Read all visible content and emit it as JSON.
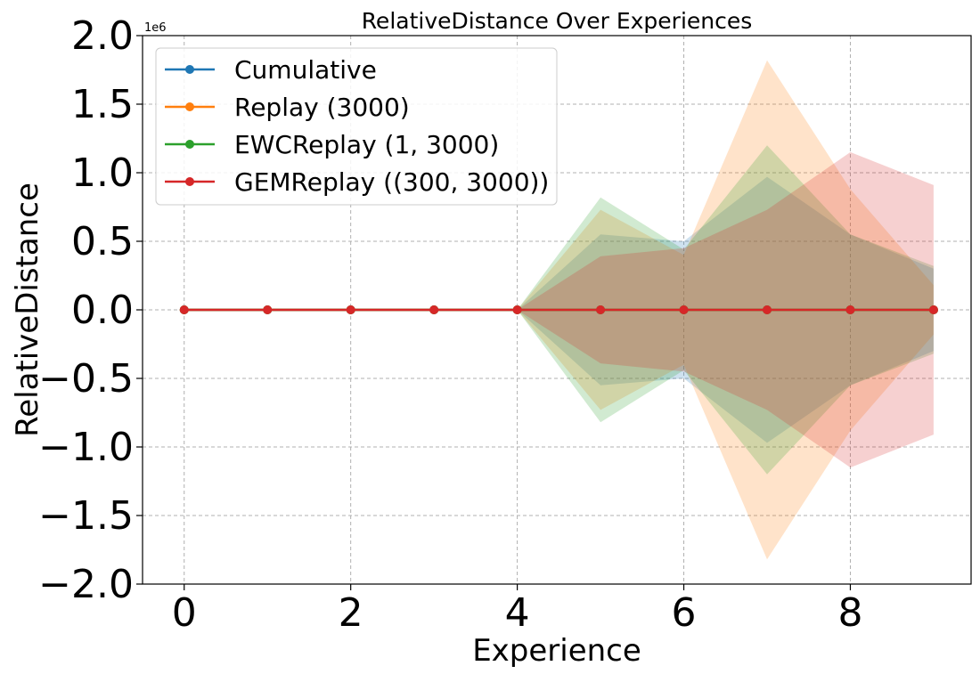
{
  "chart_data": {
    "type": "line",
    "title": "RelativeDistance Over Experiences",
    "xlabel": "Experience",
    "ylabel": "RelativeDistance",
    "y_scale_label": "1e6",
    "xlim": [
      -0.5,
      9.45
    ],
    "ylim": [
      -2.0,
      2.0
    ],
    "xticks": [
      0,
      2,
      4,
      6,
      8
    ],
    "xtick_labels": [
      "0",
      "2",
      "4",
      "6",
      "8"
    ],
    "yticks": [
      2.0,
      1.5,
      1.0,
      0.5,
      0.0,
      -0.5,
      -1.0,
      -1.5,
      -2.0
    ],
    "ytick_labels": [
      "2.0",
      "1.5",
      "1.0",
      "0.5",
      "0.0",
      "−0.5",
      "−1.0",
      "−1.5",
      "−2.0"
    ],
    "grid": true,
    "legend_position": "top-left",
    "x": [
      0,
      1,
      2,
      3,
      4,
      5,
      6,
      7,
      8,
      9
    ],
    "series": [
      {
        "name": "Cumulative",
        "color": "#1f77b4",
        "values": [
          0,
          0,
          0,
          0,
          0,
          0,
          0,
          0,
          0,
          0
        ],
        "band": [
          0,
          0,
          0,
          0,
          0,
          0.55,
          0.5,
          0.97,
          0.55,
          0.3
        ]
      },
      {
        "name": "Replay (3000)",
        "color": "#ff7f0e",
        "values": [
          0,
          0,
          0,
          0,
          0,
          0,
          0,
          0,
          0,
          0
        ],
        "band": [
          0,
          0,
          0,
          0,
          0,
          0.73,
          0.4,
          1.82,
          0.88,
          0.18
        ]
      },
      {
        "name": "EWCReplay (1, 3000)",
        "color": "#2ca02c",
        "values": [
          0,
          0,
          0,
          0,
          0,
          0,
          0,
          0,
          0,
          0
        ],
        "band": [
          0,
          0,
          0,
          0,
          0,
          0.82,
          0.44,
          1.2,
          0.55,
          0.32
        ]
      },
      {
        "name": "GEMReplay ((300, 3000))",
        "color": "#d62728",
        "values": [
          0,
          0,
          0,
          0,
          0,
          0,
          0,
          0,
          0,
          0
        ],
        "band": [
          0,
          0,
          0,
          0,
          0,
          0.39,
          0.45,
          0.73,
          1.15,
          0.91
        ]
      }
    ]
  }
}
